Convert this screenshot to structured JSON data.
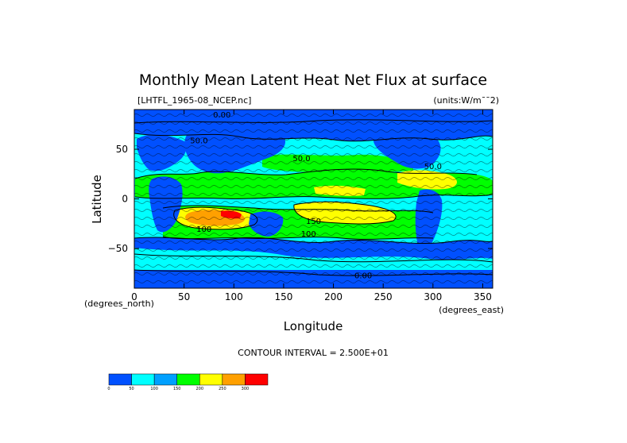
{
  "chart_data": {
    "type": "heatmap",
    "title": "Monthly Mean Latent Heat Net Flux at surface",
    "file_label": "[LHTFL_1965-08_NCEP.nc]",
    "units_label": "(units:W/m**2)",
    "xlabel": "Longitude",
    "ylabel": "Latitude",
    "x_unit_label": "(degrees_east)",
    "y_unit_label": "(degrees_north)",
    "xlim": [
      0,
      360
    ],
    "ylim": [
      -90,
      90
    ],
    "x_ticks": [
      {
        "value": 0,
        "label": "0"
      },
      {
        "value": 50,
        "label": "50"
      },
      {
        "value": 100,
        "label": "100"
      },
      {
        "value": 150,
        "label": "150"
      },
      {
        "value": 200,
        "label": "200"
      },
      {
        "value": 250,
        "label": "250"
      },
      {
        "value": 300,
        "label": "300"
      },
      {
        "value": 350,
        "label": "350"
      }
    ],
    "y_ticks": [
      {
        "value": 50,
        "label": "50"
      },
      {
        "value": 0,
        "label": "0"
      },
      {
        "value": -50,
        "label": "-50"
      }
    ],
    "contour_interval_label": "CONTOUR INTERVAL = 2.500E+01",
    "colorbar": {
      "levels": [
        "0",
        "50",
        "100",
        "150",
        "200",
        "250",
        "300"
      ],
      "colors": [
        "#0050ff",
        "#00ffff",
        "#00a0ff",
        "#00ff00",
        "#ffff00",
        "#ffa000",
        "#ff0000"
      ],
      "tick_labels": [
        "0",
        "50",
        "100",
        "150",
        "200",
        "250",
        "300"
      ]
    },
    "contour_labels": [
      {
        "lon": 88,
        "lat": 82,
        "text": "0.00"
      },
      {
        "lon": 65,
        "lat": 56,
        "text": "50.0"
      },
      {
        "lon": 168,
        "lat": 38,
        "text": "50.0"
      },
      {
        "lon": 300,
        "lat": 30,
        "text": "50.0"
      },
      {
        "lon": 70,
        "lat": -33,
        "text": "100"
      },
      {
        "lon": 180,
        "lat": -25,
        "text": "150"
      },
      {
        "lon": 175,
        "lat": -38,
        "text": "100"
      },
      {
        "lon": 230,
        "lat": -80,
        "text": "0.00"
      }
    ],
    "colors": {
      "ocean_low": "#0050ff",
      "cyan": "#00ffff",
      "green": "#00ff00",
      "yellow": "#ffff00",
      "orange": "#ffa000",
      "red": "#ff0000",
      "land_low": "#0050ff"
    }
  }
}
